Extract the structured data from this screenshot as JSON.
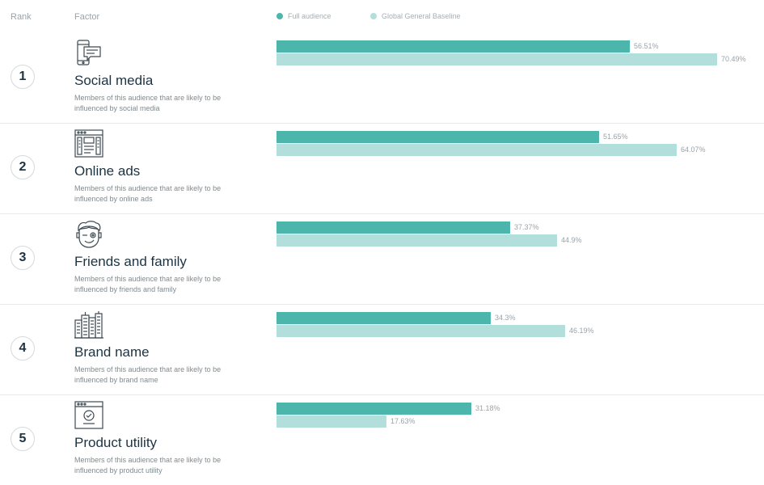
{
  "header": {
    "rank_label": "Rank",
    "factor_label": "Factor"
  },
  "legend": [
    {
      "label": "Full audience",
      "color": "#4db6ac"
    },
    {
      "label": "Global General Baseline",
      "color": "#b2dfdb"
    }
  ],
  "chart_data": {
    "type": "bar",
    "orientation": "horizontal",
    "categories": [
      "Social media",
      "Online ads",
      "Friends and family",
      "Brand name",
      "Product utility"
    ],
    "series": [
      {
        "name": "Full audience",
        "values": [
          56.51,
          51.65,
          37.37,
          34.3,
          31.18
        ],
        "labels": [
          "56.51%",
          "51.65%",
          "37.37%",
          "34.3%",
          "31.18%"
        ],
        "color": "#4db6ac"
      },
      {
        "name": "Global General Baseline",
        "values": [
          70.49,
          64.07,
          44.9,
          46.19,
          17.63
        ],
        "labels": [
          "70.49%",
          "64.07%",
          "44.9%",
          "46.19%",
          "17.63%"
        ],
        "color": "#b2dfdb"
      }
    ],
    "xlim": [
      0,
      100
    ],
    "unit": "%"
  },
  "rows": [
    {
      "rank": "1",
      "title": "Social media",
      "description": "Members of this audience that are likely to be influenced by social media",
      "icon": "smartphone-chat-icon"
    },
    {
      "rank": "2",
      "title": "Online ads",
      "description": "Members of this audience that are likely to be influenced by online ads",
      "icon": "browser-ad-icon"
    },
    {
      "rank": "3",
      "title": "Friends and family",
      "description": "Members of this audience that are likely to be influenced by friends and family",
      "icon": "winking-face-icon"
    },
    {
      "rank": "4",
      "title": "Brand name",
      "description": "Members of this audience that are likely to be influenced by brand name",
      "icon": "buildings-icon"
    },
    {
      "rank": "5",
      "title": "Product utility",
      "description": "Members of this audience that are likely to be influenced by product utility",
      "icon": "browser-check-icon"
    }
  ]
}
